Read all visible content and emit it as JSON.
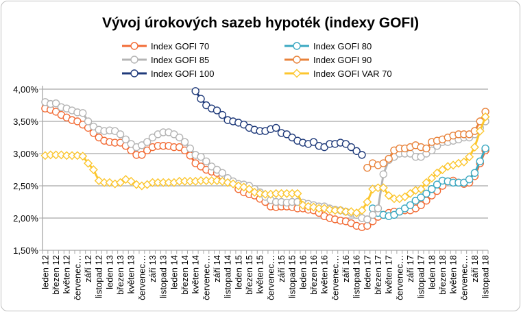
{
  "chart_data": {
    "type": "line",
    "title": "Vývoj úrokových sazeb hypoték (indexy GOFI)",
    "xlabel": "",
    "ylabel": "",
    "ylim": [
      1.5,
      4.0
    ],
    "yticks": [
      "1,50%",
      "2,00%",
      "2,50%",
      "3,00%",
      "3,50%",
      "4,00%"
    ],
    "ytick_values": [
      1.5,
      2.0,
      2.5,
      3.0,
      3.5,
      4.0
    ],
    "grid": true,
    "legend": "top",
    "x_tick_labels": [
      "leden 12",
      "březen 12",
      "květen 12",
      "červenec…",
      "září 12",
      "listopad 12",
      "leden 13",
      "březen 13",
      "květen 13",
      "červenec…",
      "září 13",
      "listopad 13",
      "leden 14",
      "březen 14",
      "květen 14",
      "červenec…",
      "září 14",
      "listopad 14",
      "leden 15",
      "březen 15",
      "květen 15",
      "červenec…",
      "září 15",
      "listopad 15",
      "leden 16",
      "březen 16",
      "květen 16",
      "červenec…",
      "září 16",
      "listopad 16",
      "leden 17",
      "březen 17",
      "květen 17",
      "červenec…",
      "září 17",
      "listopad 17",
      "leden 18",
      "březen 18",
      "květen 18",
      "červenec…",
      "září 18",
      "listopad 18"
    ],
    "x_range": [
      "leden 12",
      "listopad 18"
    ],
    "series": [
      {
        "name": "Index GOFI 70",
        "color": "#f26b35",
        "marker": "circle",
        "start_index": 0,
        "values": [
          3.7,
          3.68,
          3.65,
          3.6,
          3.56,
          3.52,
          3.5,
          3.45,
          3.4,
          3.32,
          3.25,
          3.2,
          3.18,
          3.17,
          3.17,
          3.12,
          3.05,
          2.98,
          2.98,
          3.05,
          3.1,
          3.12,
          3.12,
          3.12,
          3.1,
          3.1,
          3.05,
          2.97,
          2.85,
          2.8,
          2.75,
          2.72,
          2.7,
          2.65,
          2.6,
          2.55,
          2.45,
          2.4,
          2.37,
          2.35,
          2.3,
          2.25,
          2.18,
          2.17,
          2.18,
          2.18,
          2.17,
          2.15,
          2.15,
          2.13,
          2.12,
          2.08,
          2.03,
          2.0,
          1.98,
          1.96,
          1.95,
          1.92,
          1.88,
          1.86,
          1.88,
          1.95,
          2.02,
          2.05,
          2.08,
          2.1,
          2.1,
          2.12,
          2.12,
          2.15,
          2.2,
          2.27,
          2.35,
          2.42,
          2.5,
          2.57,
          2.58,
          2.55,
          2.53,
          2.55,
          2.65,
          2.85,
          3.05
        ]
      },
      {
        "name": "Index GOFI 80",
        "color": "#3aa8c1",
        "marker": "circle",
        "start_index": 61,
        "values": [
          2.15,
          2.08,
          2.05,
          2.03,
          2.05,
          2.1,
          2.15,
          2.2,
          2.27,
          2.32,
          2.38,
          2.45,
          2.52,
          2.58,
          2.57,
          2.55,
          2.55,
          2.55,
          2.6,
          2.7,
          2.88,
          3.08
        ]
      },
      {
        "name": "Index GOFI 85",
        "color": "#b4b4b4",
        "marker": "circle",
        "start_index": 0,
        "values": [
          3.8,
          3.77,
          3.78,
          3.72,
          3.7,
          3.67,
          3.64,
          3.63,
          3.5,
          3.42,
          3.37,
          3.35,
          3.36,
          3.35,
          3.3,
          3.22,
          3.15,
          3.1,
          3.13,
          3.18,
          3.25,
          3.3,
          3.33,
          3.33,
          3.3,
          3.25,
          3.18,
          3.08,
          2.98,
          2.95,
          2.88,
          2.8,
          2.75,
          2.7,
          2.62,
          2.57,
          2.53,
          2.52,
          2.5,
          2.45,
          2.4,
          2.33,
          2.28,
          2.25,
          2.25,
          2.24,
          2.25,
          2.25,
          2.24,
          2.22,
          2.2,
          2.18,
          2.18,
          2.15,
          2.13,
          2.12,
          2.1,
          2.08,
          2.05,
          2.0,
          1.98,
          2.05,
          2.15,
          2.68,
          2.9,
          2.95,
          3.0,
          3.0,
          3.0,
          2.95,
          2.95,
          3.0,
          3.05,
          3.12,
          3.18,
          3.18,
          3.2,
          3.22,
          3.25,
          3.25,
          3.3,
          3.4,
          3.5
        ]
      },
      {
        "name": "Index GOFI 90",
        "color": "#e8823a",
        "marker": "circle",
        "start_index": 60,
        "values": [
          2.78,
          2.85,
          2.82,
          2.85,
          2.92,
          3.05,
          3.08,
          3.08,
          3.1,
          3.13,
          3.1,
          3.08,
          3.18,
          3.2,
          3.22,
          3.25,
          3.28,
          3.3,
          3.3,
          3.3,
          3.35,
          3.5,
          3.65
        ]
      },
      {
        "name": "Index GOFI 100",
        "color": "#1f3a7a",
        "marker": "circle",
        "start_index": 28,
        "values": [
          3.97,
          3.85,
          3.75,
          3.7,
          3.67,
          3.6,
          3.52,
          3.5,
          3.48,
          3.45,
          3.4,
          3.37,
          3.35,
          3.35,
          3.38,
          3.4,
          3.32,
          3.3,
          3.25,
          3.2,
          3.17,
          3.15,
          3.18,
          3.12,
          3.1,
          3.15,
          3.15,
          3.17,
          3.15,
          3.1,
          3.04,
          2.98
        ]
      },
      {
        "name": "Index GOFI VAR 70",
        "color": "#fcc62e",
        "marker": "diamond",
        "start_index": 0,
        "values": [
          2.97,
          2.98,
          2.98,
          2.98,
          2.97,
          2.97,
          2.97,
          2.96,
          2.85,
          2.75,
          2.58,
          2.55,
          2.55,
          2.53,
          2.55,
          2.6,
          2.57,
          2.52,
          2.5,
          2.52,
          2.55,
          2.55,
          2.55,
          2.55,
          2.55,
          2.57,
          2.57,
          2.57,
          2.57,
          2.58,
          2.58,
          2.58,
          2.58,
          2.57,
          2.55,
          2.53,
          2.5,
          2.48,
          2.45,
          2.4,
          2.38,
          2.37,
          2.37,
          2.38,
          2.38,
          2.38,
          2.38,
          2.38,
          2.2,
          2.18,
          2.17,
          2.15,
          2.15,
          2.13,
          2.12,
          2.12,
          2.1,
          2.1,
          2.08,
          2.12,
          2.25,
          2.45,
          2.47,
          2.47,
          2.35,
          2.3,
          2.3,
          2.33,
          2.38,
          2.43,
          2.45,
          2.55,
          2.62,
          2.7,
          2.75,
          2.8,
          2.82,
          2.85,
          2.87,
          2.95,
          3.1,
          3.35,
          3.57
        ]
      }
    ]
  }
}
